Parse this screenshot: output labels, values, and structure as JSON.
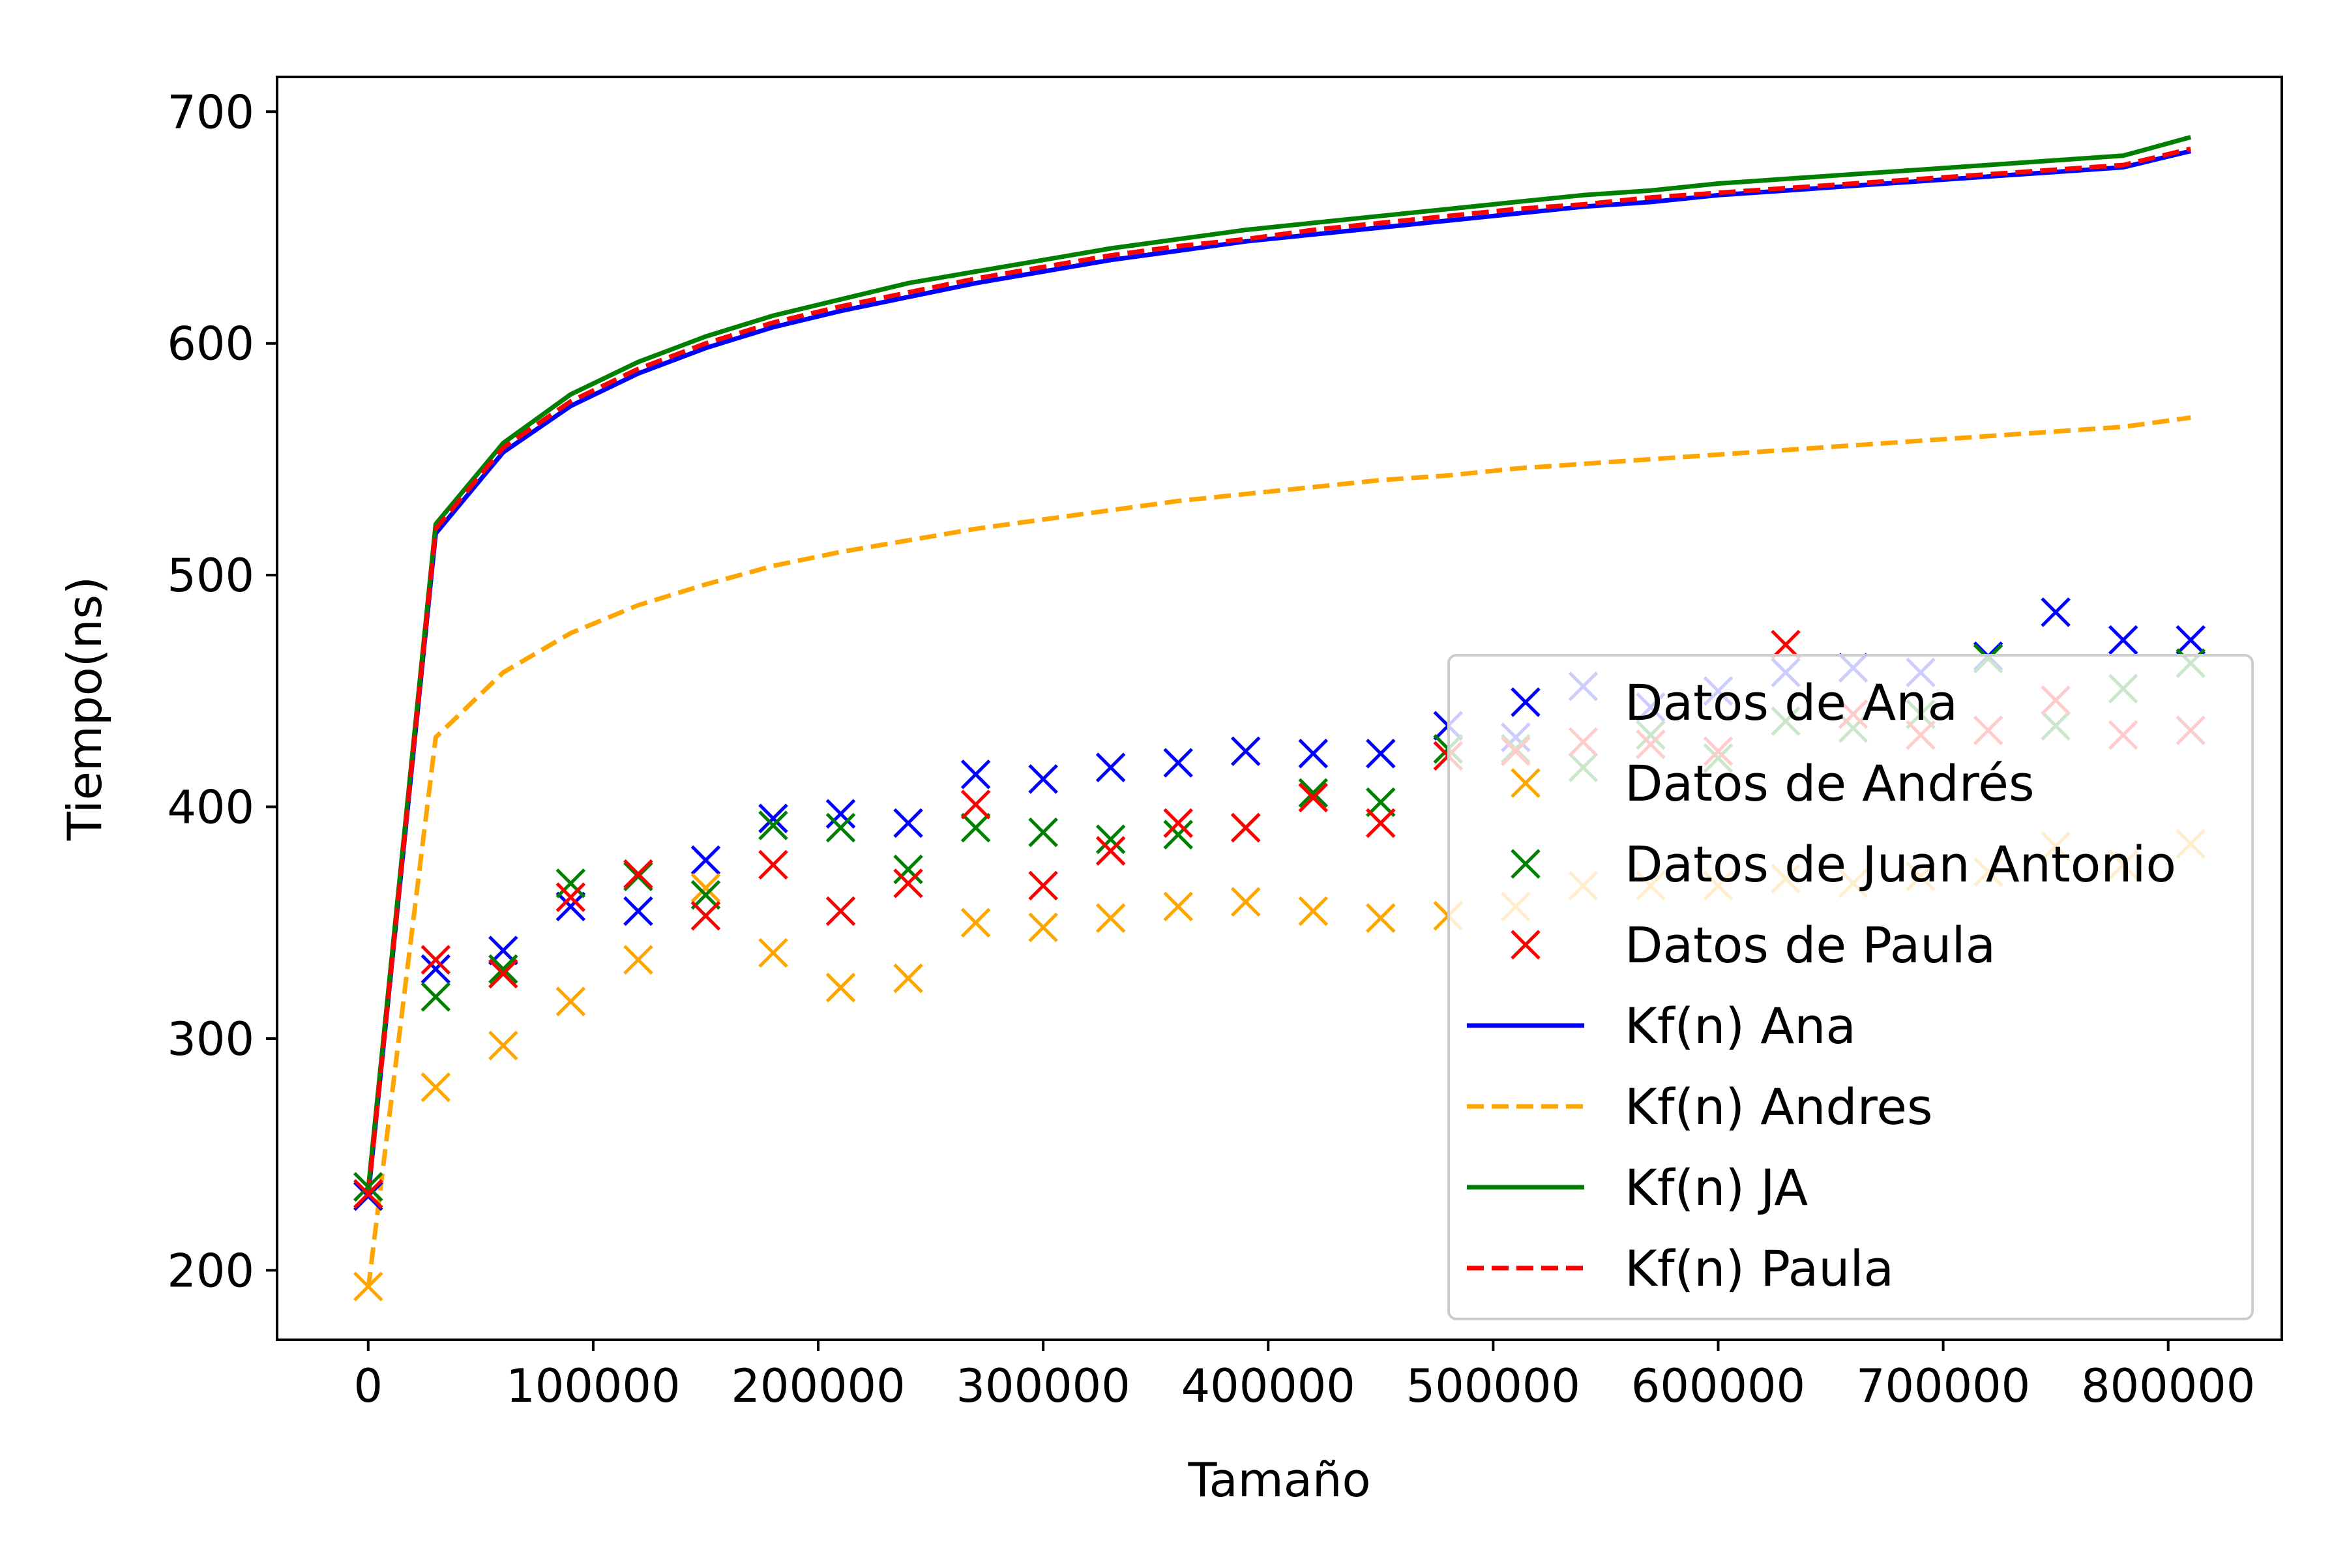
{
  "chart_data": {
    "type": "scatter",
    "title": "",
    "xlabel": "Tamaño",
    "ylabel": "Tiempo(ns)",
    "xlim": [
      -40500,
      850500
    ],
    "ylim": [
      170,
      715
    ],
    "xticks": [
      0,
      100000,
      200000,
      300000,
      400000,
      500000,
      600000,
      700000,
      800000
    ],
    "xtick_labels": [
      "0",
      "100000",
      "200000",
      "300000",
      "400000",
      "500000",
      "600000",
      "700000",
      "800000"
    ],
    "yticks": [
      200,
      300,
      400,
      500,
      600,
      700
    ],
    "ytick_labels": [
      "200",
      "300",
      "400",
      "500",
      "600",
      "700"
    ],
    "grid": false,
    "legend_position": "lower-right",
    "x": [
      0,
      30000,
      60000,
      90000,
      120000,
      150000,
      180000,
      210000,
      240000,
      270000,
      300000,
      330000,
      360000,
      390000,
      420000,
      450000,
      480000,
      510000,
      540000,
      570000,
      600000,
      630000,
      660000,
      690000,
      720000,
      750000,
      780000,
      810000
    ],
    "scatter_series": [
      {
        "name": "Datos de Ana",
        "color": "#0000ff",
        "marker": "x",
        "values": [
          232,
          330,
          338,
          357,
          355,
          377,
          395,
          397,
          393,
          414,
          412,
          417,
          419,
          424,
          423,
          423,
          435,
          430,
          452,
          443,
          450,
          458,
          460,
          458,
          465,
          484,
          472,
          472
        ]
      },
      {
        "name": "Datos de Andrés",
        "color": "#ffa500",
        "marker": "x",
        "values": [
          193,
          279,
          297,
          316,
          334,
          365,
          337,
          322,
          326,
          350,
          348,
          352,
          357,
          359,
          355,
          352,
          353,
          357,
          366,
          366,
          366,
          369,
          367,
          370,
          372,
          383,
          375,
          384
        ]
      },
      {
        "name": "Datos de Juan Antonio",
        "color": "#008000",
        "marker": "x",
        "values": [
          236,
          318,
          330,
          367,
          370,
          362,
          392,
          391,
          373,
          391,
          389,
          386,
          388,
          391,
          406,
          402,
          425,
          425,
          417,
          431,
          421,
          437,
          434,
          440,
          464,
          435,
          451,
          462
        ]
      },
      {
        "name": "Datos de Paula",
        "color": "#ff0000",
        "marker": "x",
        "values": [
          233,
          334,
          328,
          361,
          371,
          353,
          375,
          355,
          367,
          401,
          366,
          381,
          393,
          391,
          404,
          393,
          422,
          424,
          428,
          427,
          424,
          470,
          440,
          431,
          433,
          446,
          431,
          433
        ]
      }
    ],
    "line_series": [
      {
        "name": "Kf(n) Ana",
        "color": "#0000ff",
        "style": "solid",
        "values": [
          232,
          518,
          553,
          573,
          587,
          598,
          607,
          614,
          620,
          626,
          631,
          636,
          640,
          644,
          647,
          650,
          653,
          656,
          659,
          661,
          664,
          666,
          668,
          670,
          672,
          674,
          676,
          683
        ]
      },
      {
        "name": "Kf(n) Andres",
        "color": "#ffa500",
        "style": "dashed",
        "values": [
          192,
          430,
          458,
          475,
          487,
          496,
          504,
          510,
          515,
          520,
          524,
          528,
          532,
          535,
          538,
          541,
          543,
          546,
          548,
          550,
          552,
          554,
          556,
          558,
          560,
          562,
          564,
          568
        ]
      },
      {
        "name": "Kf(n) JA",
        "color": "#008000",
        "style": "solid",
        "values": [
          235,
          522,
          557,
          578,
          592,
          603,
          612,
          619,
          626,
          631,
          636,
          641,
          645,
          649,
          652,
          655,
          658,
          661,
          664,
          666,
          669,
          671,
          673,
          675,
          677,
          679,
          681,
          689
        ]
      },
      {
        "name": "Kf(n) Paula",
        "color": "#ff0000",
        "style": "dashed",
        "values": [
          232,
          520,
          555,
          575,
          589,
          600,
          609,
          616,
          622,
          628,
          633,
          638,
          642,
          645,
          649,
          652,
          655,
          658,
          660,
          663,
          665,
          667,
          669,
          671,
          673,
          675,
          677,
          684
        ]
      }
    ]
  }
}
